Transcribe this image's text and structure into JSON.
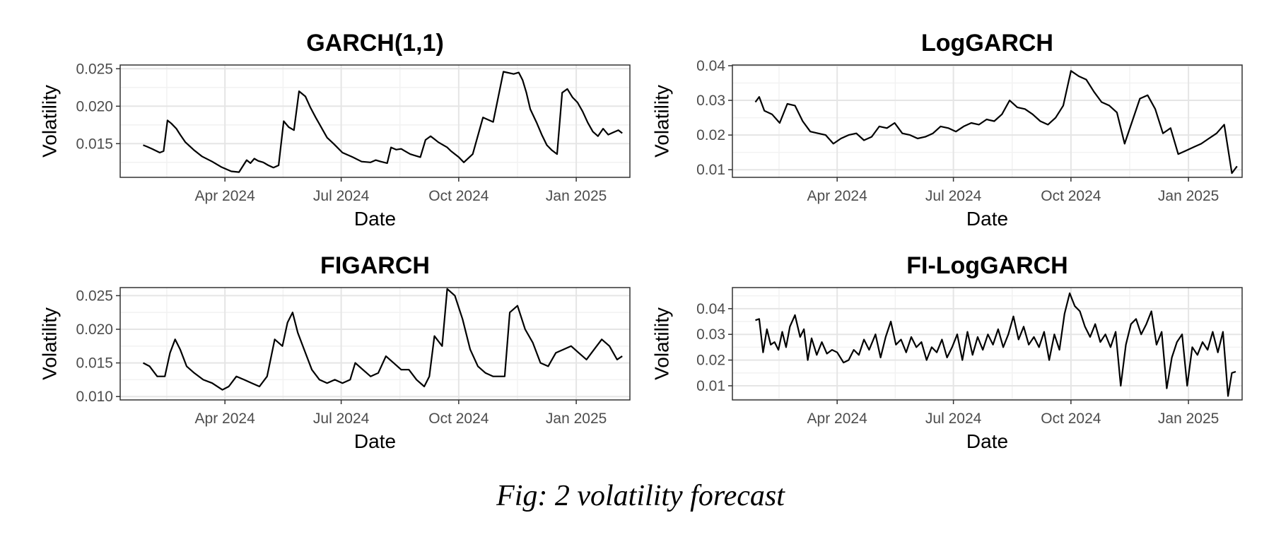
{
  "caption": "Fig: 2 volatility forecast",
  "colors": {
    "line": "#000000",
    "grid_major": "#e5e5e5",
    "grid_minor": "#f2f2f2",
    "panel_border": "#333333",
    "tick_text": "#4d4d4d"
  },
  "chart_data": [
    {
      "type": "line",
      "title": "GARCH(1,1)",
      "xlabel": "Date",
      "ylabel": "Volatility",
      "xticks": [
        "Apr 2024",
        "Jul 2024",
        "Oct 2024",
        "Jan 2025"
      ],
      "xlim": [
        "2024-01-10",
        "2025-02-12"
      ],
      "ylim": [
        0.0105,
        0.0255
      ],
      "yticks": [
        "0.015",
        "0.020",
        "0.025"
      ],
      "ytick_values": [
        0.015,
        0.02,
        0.025
      ],
      "grid": true,
      "x": [
        "2024-01-28",
        "2024-01-31",
        "2024-02-04",
        "2024-02-10",
        "2024-02-13",
        "2024-02-16",
        "2024-02-19",
        "2024-02-23",
        "2024-02-26",
        "2024-03-01",
        "2024-03-08",
        "2024-03-14",
        "2024-03-22",
        "2024-03-29",
        "2024-04-06",
        "2024-04-12",
        "2024-04-15",
        "2024-04-18",
        "2024-04-21",
        "2024-04-24",
        "2024-04-27",
        "2024-05-01",
        "2024-05-05",
        "2024-05-09",
        "2024-05-13",
        "2024-05-17",
        "2024-05-21",
        "2024-05-25",
        "2024-05-29",
        "2024-06-03",
        "2024-06-07",
        "2024-06-11",
        "2024-06-14",
        "2024-06-17",
        "2024-06-20",
        "2024-06-25",
        "2024-07-02",
        "2024-07-10",
        "2024-07-17",
        "2024-07-24",
        "2024-07-28",
        "2024-08-01",
        "2024-08-06",
        "2024-08-09",
        "2024-08-13",
        "2024-08-17",
        "2024-08-20",
        "2024-08-24",
        "2024-08-28",
        "2024-09-01",
        "2024-09-05",
        "2024-09-09",
        "2024-09-12",
        "2024-09-15",
        "2024-09-18",
        "2024-09-22",
        "2024-09-25",
        "2024-10-01",
        "2024-10-05",
        "2024-10-12",
        "2024-10-20",
        "2024-10-28",
        "2024-11-05",
        "2024-11-13",
        "2024-11-17",
        "2024-11-20",
        "2024-11-23",
        "2024-11-26",
        "2024-12-01",
        "2024-12-05",
        "2024-12-09",
        "2024-12-13",
        "2024-12-17",
        "2024-12-21",
        "2024-12-25",
        "2024-12-29",
        "2025-01-02",
        "2025-01-06",
        "2025-01-10",
        "2025-01-14",
        "2025-01-18",
        "2025-01-22",
        "2025-01-26",
        "2025-01-30",
        "2025-02-03",
        "2025-02-06"
      ],
      "series": [
        {
          "values": [
            0.0148,
            0.0146,
            0.0143,
            0.0138,
            0.014,
            0.0181,
            0.0177,
            0.017,
            0.0162,
            0.0152,
            0.0141,
            0.0133,
            0.0126,
            0.0119,
            0.0113,
            0.0112,
            0.012,
            0.0128,
            0.0124,
            0.013,
            0.0127,
            0.0125,
            0.0121,
            0.0118,
            0.0121,
            0.018,
            0.0172,
            0.0168,
            0.022,
            0.0213,
            0.0198,
            0.0185,
            0.0176,
            0.0167,
            0.0158,
            0.015,
            0.0138,
            0.0132,
            0.0126,
            0.0125,
            0.0128,
            0.0126,
            0.0124,
            0.0145,
            0.0142,
            0.0143,
            0.014,
            0.0136,
            0.0134,
            0.0132,
            0.0155,
            0.016,
            0.0156,
            0.0152,
            0.0149,
            0.0145,
            0.014,
            0.0132,
            0.0125,
            0.0136,
            0.0185,
            0.0179,
            0.0246,
            0.0243,
            0.0245,
            0.0235,
            0.0218,
            0.0196,
            0.0178,
            0.0162,
            0.0148,
            0.0141,
            0.0136,
            0.0218,
            0.0223,
            0.0212,
            0.0205,
            0.0193,
            0.0178,
            0.0166,
            0.016,
            0.017,
            0.0162,
            0.0165,
            0.0168,
            0.0164
          ]
        }
      ]
    },
    {
      "type": "line",
      "title": "LogGARCH",
      "xlabel": "Date",
      "ylabel": "Volatility",
      "xticks": [
        "Apr 2024",
        "Jul 2024",
        "Oct 2024",
        "Jan 2025"
      ],
      "xlim": [
        "2024-01-10",
        "2025-02-12"
      ],
      "ylim": [
        0.0078,
        0.0402
      ],
      "yticks": [
        "0.01",
        "0.02",
        "0.03",
        "0.04"
      ],
      "ytick_values": [
        0.01,
        0.02,
        0.03,
        0.04
      ],
      "grid": true,
      "x": [
        "2024-01-28",
        "2024-01-31",
        "2024-02-04",
        "2024-02-10",
        "2024-02-16",
        "2024-02-22",
        "2024-02-28",
        "2024-03-05",
        "2024-03-11",
        "2024-03-17",
        "2024-03-23",
        "2024-03-29",
        "2024-04-04",
        "2024-04-10",
        "2024-04-16",
        "2024-04-22",
        "2024-04-28",
        "2024-05-04",
        "2024-05-10",
        "2024-05-16",
        "2024-05-22",
        "2024-05-28",
        "2024-06-03",
        "2024-06-09",
        "2024-06-15",
        "2024-06-21",
        "2024-06-27",
        "2024-07-03",
        "2024-07-09",
        "2024-07-15",
        "2024-07-21",
        "2024-07-27",
        "2024-08-02",
        "2024-08-08",
        "2024-08-14",
        "2024-08-20",
        "2024-08-26",
        "2024-09-01",
        "2024-09-07",
        "2024-09-13",
        "2024-09-19",
        "2024-09-25",
        "2024-10-01",
        "2024-10-07",
        "2024-10-13",
        "2024-10-19",
        "2024-10-25",
        "2024-10-31",
        "2024-11-06",
        "2024-11-12",
        "2024-11-18",
        "2024-11-24",
        "2024-11-30",
        "2024-12-06",
        "2024-12-12",
        "2024-12-18",
        "2024-12-24",
        "2024-12-30",
        "2025-01-05",
        "2025-01-11",
        "2025-01-17",
        "2025-01-23",
        "2025-01-29",
        "2025-02-04",
        "2025-02-08"
      ],
      "series": [
        {
          "values": [
            0.0295,
            0.031,
            0.027,
            0.026,
            0.0235,
            0.029,
            0.0285,
            0.024,
            0.021,
            0.0205,
            0.02,
            0.0175,
            0.019,
            0.02,
            0.0205,
            0.0185,
            0.0195,
            0.0225,
            0.022,
            0.0235,
            0.0205,
            0.02,
            0.019,
            0.0195,
            0.0205,
            0.0225,
            0.022,
            0.021,
            0.0225,
            0.0235,
            0.023,
            0.0245,
            0.024,
            0.026,
            0.03,
            0.028,
            0.0275,
            0.026,
            0.024,
            0.023,
            0.025,
            0.0285,
            0.0385,
            0.037,
            0.036,
            0.0325,
            0.0295,
            0.0285,
            0.0265,
            0.0175,
            0.024,
            0.0305,
            0.0315,
            0.0275,
            0.0205,
            0.022,
            0.0145,
            0.0155,
            0.0165,
            0.0175,
            0.019,
            0.0205,
            0.023,
            0.009,
            0.011
          ]
        }
      ]
    },
    {
      "type": "line",
      "title": "FIGARCH",
      "xlabel": "Date",
      "ylabel": "Volatility",
      "xticks": [
        "Apr 2024",
        "Jul 2024",
        "Oct 2024",
        "Jan 2025"
      ],
      "xlim": [
        "2024-01-10",
        "2025-02-12"
      ],
      "ylim": [
        0.0095,
        0.0262
      ],
      "yticks": [
        "0.010",
        "0.015",
        "0.020",
        "0.025"
      ],
      "ytick_values": [
        0.01,
        0.015,
        0.02,
        0.025
      ],
      "grid": true,
      "x": [
        "2024-01-28",
        "2024-02-02",
        "2024-02-08",
        "2024-02-14",
        "2024-02-18",
        "2024-02-22",
        "2024-02-26",
        "2024-03-02",
        "2024-03-08",
        "2024-03-15",
        "2024-03-22",
        "2024-03-30",
        "2024-04-04",
        "2024-04-10",
        "2024-04-16",
        "2024-04-22",
        "2024-04-28",
        "2024-05-04",
        "2024-05-10",
        "2024-05-16",
        "2024-05-20",
        "2024-05-24",
        "2024-05-28",
        "2024-06-02",
        "2024-06-08",
        "2024-06-14",
        "2024-06-20",
        "2024-06-26",
        "2024-07-02",
        "2024-07-08",
        "2024-07-12",
        "2024-07-18",
        "2024-07-24",
        "2024-07-30",
        "2024-08-05",
        "2024-08-11",
        "2024-08-17",
        "2024-08-23",
        "2024-08-29",
        "2024-09-04",
        "2024-09-08",
        "2024-09-12",
        "2024-09-18",
        "2024-09-22",
        "2024-09-28",
        "2024-10-04",
        "2024-10-10",
        "2024-10-16",
        "2024-10-22",
        "2024-10-28",
        "2024-11-06",
        "2024-11-10",
        "2024-11-16",
        "2024-11-22",
        "2024-11-28",
        "2024-12-04",
        "2024-12-10",
        "2024-12-16",
        "2024-12-22",
        "2024-12-28",
        "2025-01-03",
        "2025-01-09",
        "2025-01-15",
        "2025-01-21",
        "2025-01-27",
        "2025-02-02",
        "2025-02-06"
      ],
      "series": [
        {
          "values": [
            0.015,
            0.0145,
            0.013,
            0.013,
            0.0165,
            0.0185,
            0.017,
            0.0145,
            0.0135,
            0.0125,
            0.012,
            0.011,
            0.0115,
            0.013,
            0.0125,
            0.012,
            0.0115,
            0.013,
            0.0185,
            0.0175,
            0.021,
            0.0225,
            0.0195,
            0.017,
            0.014,
            0.0125,
            0.012,
            0.0125,
            0.012,
            0.0125,
            0.015,
            0.014,
            0.013,
            0.0135,
            0.016,
            0.015,
            0.014,
            0.014,
            0.0125,
            0.0115,
            0.013,
            0.019,
            0.0175,
            0.026,
            0.025,
            0.0215,
            0.017,
            0.0145,
            0.0135,
            0.013,
            0.013,
            0.0225,
            0.0235,
            0.02,
            0.018,
            0.015,
            0.0145,
            0.0165,
            0.017,
            0.0175,
            0.0165,
            0.0155,
            0.017,
            0.0185,
            0.0175,
            0.0155,
            0.016
          ]
        }
      ]
    },
    {
      "type": "line",
      "title": "FI-LogGARCH",
      "xlabel": "Date",
      "ylabel": "Volatility",
      "xticks": [
        "Apr 2024",
        "Jul 2024",
        "Oct 2024",
        "Jan 2025"
      ],
      "xlim": [
        "2024-01-10",
        "2025-02-12"
      ],
      "ylim": [
        0.0045,
        0.0482
      ],
      "yticks": [
        "0.01",
        "0.02",
        "0.03",
        "0.04"
      ],
      "ytick_values": [
        0.01,
        0.02,
        0.03,
        0.04
      ],
      "grid": true,
      "x": [
        "2024-01-28",
        "2024-01-31",
        "2024-02-03",
        "2024-02-06",
        "2024-02-09",
        "2024-02-12",
        "2024-02-15",
        "2024-02-18",
        "2024-02-21",
        "2024-02-24",
        "2024-02-28",
        "2024-03-03",
        "2024-03-06",
        "2024-03-09",
        "2024-03-12",
        "2024-03-16",
        "2024-03-20",
        "2024-03-24",
        "2024-03-28",
        "2024-04-01",
        "2024-04-06",
        "2024-04-10",
        "2024-04-14",
        "2024-04-18",
        "2024-04-22",
        "2024-04-26",
        "2024-05-01",
        "2024-05-05",
        "2024-05-09",
        "2024-05-13",
        "2024-05-17",
        "2024-05-21",
        "2024-05-25",
        "2024-05-29",
        "2024-06-02",
        "2024-06-06",
        "2024-06-10",
        "2024-06-14",
        "2024-06-18",
        "2024-06-22",
        "2024-06-26",
        "2024-06-30",
        "2024-07-04",
        "2024-07-08",
        "2024-07-12",
        "2024-07-16",
        "2024-07-20",
        "2024-07-24",
        "2024-07-28",
        "2024-08-01",
        "2024-08-05",
        "2024-08-09",
        "2024-08-13",
        "2024-08-17",
        "2024-08-21",
        "2024-08-25",
        "2024-08-29",
        "2024-09-02",
        "2024-09-06",
        "2024-09-10",
        "2024-09-14",
        "2024-09-18",
        "2024-09-22",
        "2024-09-26",
        "2024-09-30",
        "2024-10-04",
        "2024-10-08",
        "2024-10-12",
        "2024-10-16",
        "2024-10-20",
        "2024-10-24",
        "2024-10-28",
        "2024-11-01",
        "2024-11-05",
        "2024-11-09",
        "2024-11-13",
        "2024-11-17",
        "2024-11-21",
        "2024-11-25",
        "2024-11-29",
        "2024-12-03",
        "2024-12-07",
        "2024-12-11",
        "2024-12-15",
        "2024-12-19",
        "2024-12-23",
        "2024-12-27",
        "2024-12-31",
        "2025-01-04",
        "2025-01-08",
        "2025-01-12",
        "2025-01-16",
        "2025-01-20",
        "2025-01-24",
        "2025-01-28",
        "2025-02-01",
        "2025-02-04",
        "2025-02-07"
      ],
      "series": [
        {
          "values": [
            0.0355,
            0.036,
            0.023,
            0.032,
            0.026,
            0.027,
            0.024,
            0.031,
            0.025,
            0.033,
            0.0375,
            0.029,
            0.032,
            0.02,
            0.0285,
            0.022,
            0.027,
            0.0225,
            0.024,
            0.023,
            0.019,
            0.02,
            0.024,
            0.022,
            0.028,
            0.024,
            0.03,
            0.021,
            0.029,
            0.035,
            0.026,
            0.028,
            0.023,
            0.029,
            0.025,
            0.027,
            0.02,
            0.025,
            0.023,
            0.028,
            0.021,
            0.025,
            0.03,
            0.02,
            0.031,
            0.022,
            0.029,
            0.024,
            0.03,
            0.026,
            0.032,
            0.025,
            0.03,
            0.037,
            0.028,
            0.033,
            0.026,
            0.029,
            0.025,
            0.031,
            0.02,
            0.03,
            0.024,
            0.038,
            0.046,
            0.041,
            0.039,
            0.033,
            0.029,
            0.034,
            0.027,
            0.03,
            0.025,
            0.031,
            0.01,
            0.026,
            0.034,
            0.036,
            0.03,
            0.034,
            0.039,
            0.026,
            0.031,
            0.009,
            0.021,
            0.027,
            0.03,
            0.01,
            0.025,
            0.022,
            0.027,
            0.024,
            0.031,
            0.023,
            0.031,
            0.006,
            0.015,
            0.0155
          ]
        }
      ]
    }
  ]
}
